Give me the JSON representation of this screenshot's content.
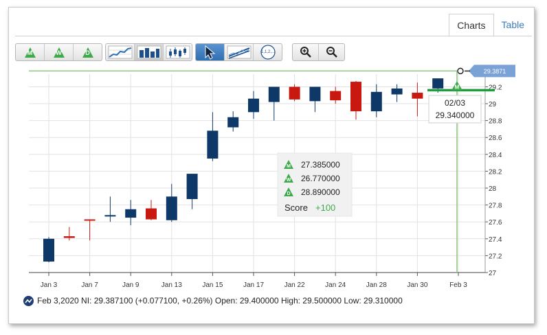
{
  "tabs": [
    {
      "label": "Charts",
      "active": true
    },
    {
      "label": "Table",
      "active": false
    }
  ],
  "toolbar": {
    "period_buttons": [
      {
        "letter": "M",
        "name": "monthly"
      },
      {
        "letter": "W",
        "name": "weekly"
      },
      {
        "letter": "D",
        "name": "daily"
      }
    ],
    "chart_type_buttons": [
      "line-chart-icon",
      "bar-chart-icon",
      "candlestick-chart-icon"
    ],
    "tool_buttons": [
      "pointer-icon",
      "trendline-icon",
      "fibonacci-icon"
    ],
    "fib_label": "1,1,2,...",
    "zoom_buttons": [
      "zoom-in-icon",
      "zoom-out-icon"
    ]
  },
  "colors": {
    "up": "#0e3868",
    "down": "#c8180f",
    "grid": "#e2e2e2",
    "accent_green": "#3daa4a",
    "price_line": "#8cc47c",
    "price_tag": "#7aa2d6"
  },
  "chart_data": {
    "type": "candlestick",
    "ylim": [
      27.0,
      29.35
    ],
    "y_ticks": [
      "27",
      "27.2",
      "27.4",
      "27.6",
      "27.8",
      "28",
      "28.2",
      "28.4",
      "28.6",
      "28.8",
      "29",
      "29.2"
    ],
    "x_ticks": [
      "Jan 3",
      "Jan 7",
      "Jan 9",
      "Jan 13",
      "Jan 15",
      "Jan 17",
      "Jan 22",
      "Jan 24",
      "Jan 28",
      "Jan 30",
      "Feb 3"
    ],
    "candles": [
      {
        "o": 27.13,
        "h": 27.42,
        "l": 27.12,
        "c": 27.4
      },
      {
        "o": 27.43,
        "h": 27.54,
        "l": 27.38,
        "c": 27.41
      },
      {
        "o": 27.63,
        "h": 27.63,
        "l": 27.38,
        "c": 27.62
      },
      {
        "o": 27.67,
        "h": 27.9,
        "l": 27.6,
        "c": 27.68
      },
      {
        "o": 27.65,
        "h": 27.86,
        "l": 27.56,
        "c": 27.75
      },
      {
        "o": 27.76,
        "h": 27.86,
        "l": 27.62,
        "c": 27.63
      },
      {
        "o": 27.62,
        "h": 28.05,
        "l": 27.6,
        "c": 27.9
      },
      {
        "o": 27.87,
        "h": 28.17,
        "l": 27.75,
        "c": 28.17
      },
      {
        "o": 28.35,
        "h": 28.9,
        "l": 28.32,
        "c": 28.68
      },
      {
        "o": 28.72,
        "h": 28.91,
        "l": 28.67,
        "c": 28.84
      },
      {
        "o": 28.9,
        "h": 29.15,
        "l": 28.82,
        "c": 29.06
      },
      {
        "o": 29.02,
        "h": 29.2,
        "l": 28.8,
        "c": 29.2
      },
      {
        "o": 29.2,
        "h": 29.23,
        "l": 29.03,
        "c": 29.05
      },
      {
        "o": 29.03,
        "h": 29.2,
        "l": 28.9,
        "c": 29.2
      },
      {
        "o": 29.15,
        "h": 29.2,
        "l": 29.0,
        "c": 29.04
      },
      {
        "o": 29.26,
        "h": 29.27,
        "l": 28.81,
        "c": 28.91
      },
      {
        "o": 28.91,
        "h": 29.23,
        "l": 28.84,
        "c": 29.14
      },
      {
        "o": 29.11,
        "h": 29.23,
        "l": 29.02,
        "c": 29.18
      },
      {
        "o": 29.13,
        "h": 29.25,
        "l": 28.85,
        "c": 29.06
      },
      {
        "o": 29.18,
        "h": 29.3,
        "l": 29.13,
        "c": 29.3
      }
    ],
    "x_tick_candle_index": [
      0,
      2,
      4,
      6,
      8,
      10,
      12,
      14,
      16,
      18,
      20
    ],
    "current_price": 29.3871,
    "current_price_label": "29.3871",
    "green_level": 29.16,
    "tooltip": {
      "date": "02/03",
      "value": "29.340000"
    },
    "indicator_box": {
      "rows": [
        {
          "letter": "M",
          "value": "27.385000"
        },
        {
          "letter": "W",
          "value": "26.770000"
        },
        {
          "letter": "D",
          "value": "28.890000"
        }
      ],
      "score_label": "Score",
      "score_value": "+100"
    }
  },
  "summary_line": "Feb 3,2020 NI: 29.387100 (+0.077100, +0.26%) Open: 29.400000 High: 29.500000 Low: 29.310000"
}
